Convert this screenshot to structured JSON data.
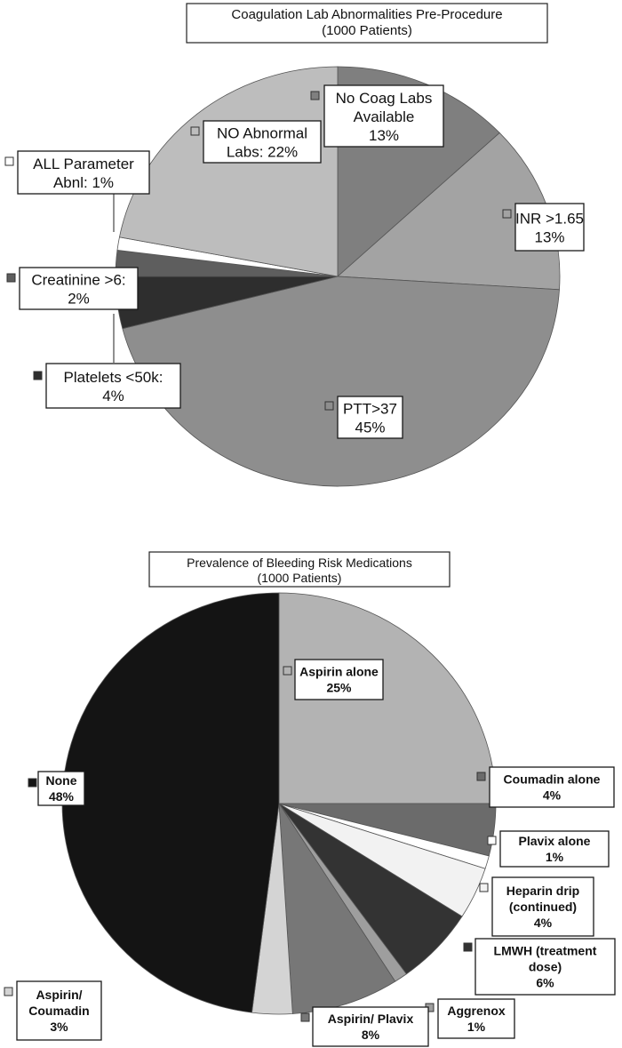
{
  "chart_data": [
    {
      "type": "pie",
      "title": [
        "Coagulation Lab Abnormalities Pre-Procedure",
        "(1000 Patients)"
      ],
      "slices": [
        {
          "label": [
            "No Coag Labs",
            "Available",
            "13%"
          ],
          "value": 13,
          "color": "#7f7f7f"
        },
        {
          "label": [
            "INR >1.65",
            "13%"
          ],
          "value": 13,
          "color": "#a3a3a3"
        },
        {
          "label": [
            "PTT>37",
            "45%"
          ],
          "value": 45,
          "color": "#8e8e8e"
        },
        {
          "label": [
            "Platelets <50k:",
            "4%"
          ],
          "value": 4,
          "color": "#2e2e2e"
        },
        {
          "label": [
            "Creatinine >6:",
            "2%"
          ],
          "value": 2,
          "color": "#5e5e5e"
        },
        {
          "label": [
            "ALL Parameter",
            "Abnl: 1%"
          ],
          "value": 1,
          "color": "#ffffff"
        },
        {
          "label": [
            "NO Abnormal",
            "Labs: 22%"
          ],
          "value": 22,
          "color": "#bdbdbd"
        }
      ]
    },
    {
      "type": "pie",
      "title": [
        "Prevalence of Bleeding Risk Medications",
        "(1000 Patients)"
      ],
      "slices": [
        {
          "label": [
            "Aspirin alone",
            "25%"
          ],
          "value": 25,
          "color": "#b3b3b3"
        },
        {
          "label": [
            "Coumadin alone",
            "4%"
          ],
          "value": 4,
          "color": "#6b6b6b"
        },
        {
          "label": [
            "Plavix alone",
            "1%"
          ],
          "value": 1,
          "color": "#ffffff"
        },
        {
          "label": [
            "Heparin drip",
            "(continued)",
            "4%"
          ],
          "value": 4,
          "color": "#f2f2f2"
        },
        {
          "label": [
            "LMWH (treatment",
            "dose)",
            "6%"
          ],
          "value": 6,
          "color": "#333333"
        },
        {
          "label": [
            "Aggrenox",
            "1%"
          ],
          "value": 1,
          "color": "#9e9e9e"
        },
        {
          "label": [
            "Aspirin/ Plavix",
            "8%"
          ],
          "value": 8,
          "color": "#777777"
        },
        {
          "label": [
            "Aspirin/",
            "Coumadin",
            "3%"
          ],
          "value": 3,
          "color": "#d4d4d4"
        },
        {
          "label": [
            "None",
            "48%"
          ],
          "value": 48,
          "color": "#141414"
        }
      ]
    }
  ]
}
